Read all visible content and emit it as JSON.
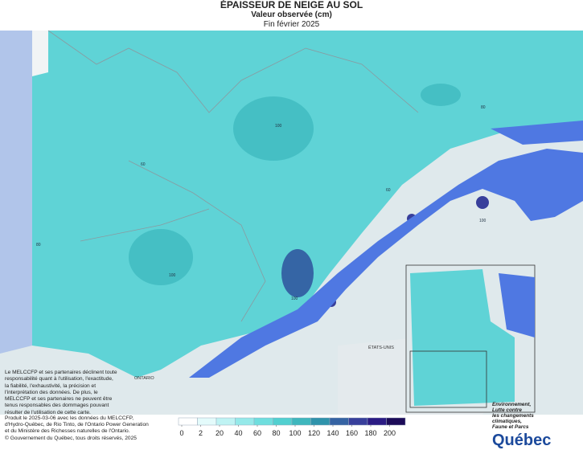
{
  "header": {
    "title": "ÉPAISSEUR DE NEIGE AU SOL",
    "subtitle": "Valeur observée (cm)",
    "date": "Fin février 2025"
  },
  "legend": {
    "ticks": [
      0,
      2,
      20,
      40,
      60,
      80,
      100,
      120,
      140,
      160,
      180,
      200
    ],
    "colors": [
      "#ffffff",
      "#e4fbfb",
      "#bff3f3",
      "#95e9e9",
      "#6fdede",
      "#52d0d0",
      "#3fb7bd",
      "#2f93ab",
      "#3563a3",
      "#383f9b",
      "#2b1b84",
      "#1c0b58"
    ]
  },
  "map_labels": {
    "ontario": "ONTARIO",
    "usa": "ÉTATS-UNIS",
    "contours": [
      "100",
      "60",
      "80",
      "60",
      "100",
      "100",
      "100",
      "80"
    ]
  },
  "disclaimer": [
    "Le MELCCFP et ses partenaires déclinent toute",
    "responsabilité quant à l'utilisation, l'exactitude,",
    "la fiabilité, l'exhaustivité, la précision et",
    "l'interprétation des données. De plus, le",
    "MELCCFP et ses partenaires ne peuvent être",
    "tenus responsables des dommages pouvant",
    "résulter de l'utilisation de cette carte."
  ],
  "footer": {
    "produced": [
      "Produit le 2025-03-06 avec les données du MELCCFP,",
      "d'Hydro-Québec, de Rio Tinto, de l'Ontario Power Generation",
      "et du Ministère des Richesses naturelles de l'Ontario."
    ],
    "copyright": "© Gouvernement du Québec, tous droits réservés, 2025"
  },
  "logo": {
    "ministry": [
      "Environnement,",
      "Lutte contre",
      "les changements",
      "climatiques,",
      "Faune et Parcs"
    ],
    "name": "Québec"
  }
}
